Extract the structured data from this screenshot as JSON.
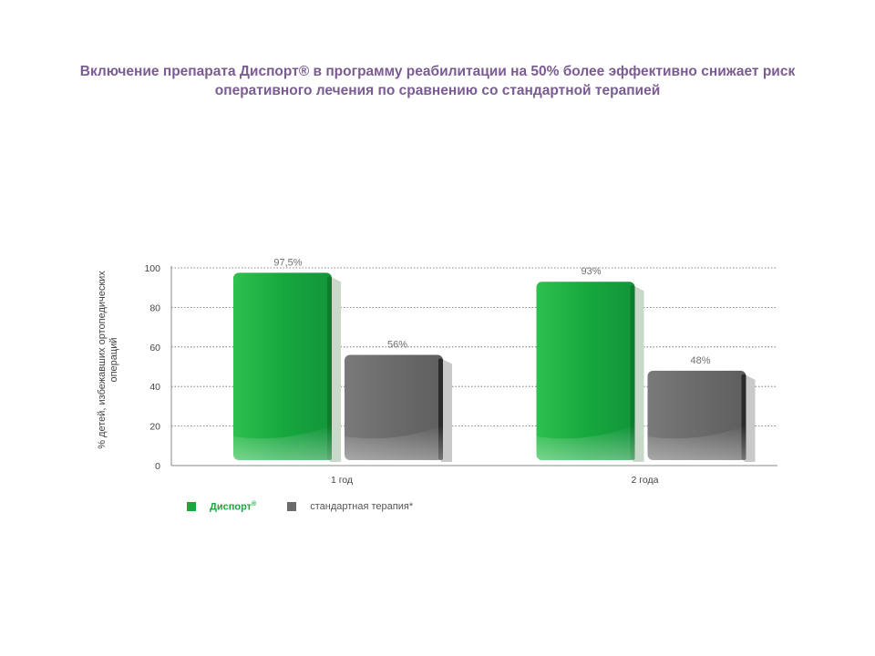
{
  "title": {
    "line1": "Включение препарата Диспорт® в программу реабилитации на 50% более эффективно снижает риск",
    "line2": "оперативного лечения по сравнению со стандартной терапией"
  },
  "chart_data": {
    "type": "bar",
    "ylabel_line1": "% детей, избежавших ортопедических",
    "ylabel_line2": "операций",
    "ylim": [
      0,
      100
    ],
    "yticks": [
      0,
      20,
      40,
      60,
      80,
      100
    ],
    "grid": true,
    "categories": [
      "1 год",
      "2 года"
    ],
    "series": [
      {
        "name": "Диспорт",
        "name_mark": "®",
        "color": "#17a83e",
        "values": [
          97.5,
          93
        ],
        "labels": [
          "97,5%",
          "93%"
        ]
      },
      {
        "name": "стандартная терапия",
        "name_mark": "*",
        "color": "#6b6b6b",
        "values": [
          56,
          48
        ],
        "labels": [
          "56%",
          "48%"
        ]
      }
    ],
    "legend_position": "bottom-left"
  }
}
